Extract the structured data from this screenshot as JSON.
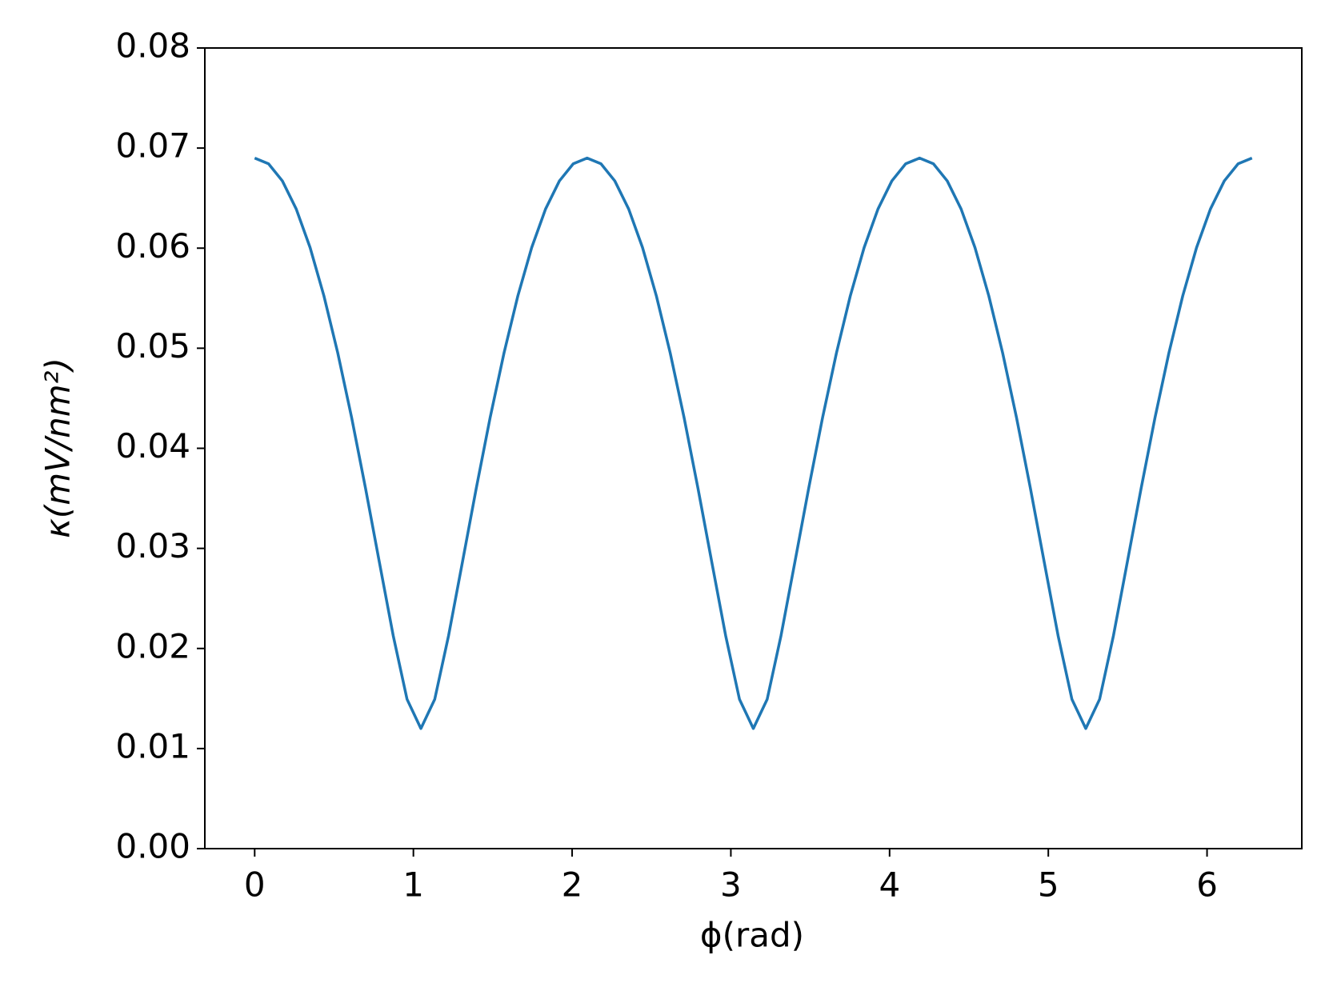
{
  "chart_data": {
    "type": "line",
    "xlabel": "ϕ(rad)",
    "ylabel": "κ(mV/nm²)",
    "x": [
      0,
      0.0873,
      0.1745,
      0.2618,
      0.3491,
      0.4363,
      0.5236,
      0.6109,
      0.6981,
      0.7854,
      0.8727,
      0.9599,
      1.0472,
      1.1345,
      1.2217,
      1.309,
      1.3963,
      1.4835,
      1.5708,
      1.6581,
      1.7453,
      1.8326,
      1.9199,
      2.0071,
      2.0944,
      2.1817,
      2.2689,
      2.3562,
      2.4435,
      2.5307,
      2.618,
      2.7053,
      2.7925,
      2.8798,
      2.9671,
      3.0543,
      3.1416,
      3.2289,
      3.3161,
      3.4034,
      3.4907,
      3.5779,
      3.6652,
      3.7525,
      3.8397,
      3.927,
      4.0143,
      4.1015,
      4.1888,
      4.2761,
      4.3633,
      4.4506,
      4.5379,
      4.6251,
      4.7124,
      4.7997,
      4.8869,
      4.9742,
      5.0615,
      5.1487,
      5.236,
      5.3233,
      5.4105,
      5.4978,
      5.5851,
      5.6723,
      5.7596,
      5.8469,
      5.9341,
      6.0214,
      6.1087,
      6.1959,
      6.2832
    ],
    "values": [
      0.069,
      0.06843,
      0.06672,
      0.06391,
      0.06006,
      0.05523,
      0.04952,
      0.04307,
      0.03603,
      0.02864,
      0.02129,
      0.01493,
      0.012,
      0.01493,
      0.02129,
      0.02864,
      0.03603,
      0.04307,
      0.04952,
      0.05523,
      0.06006,
      0.06391,
      0.06672,
      0.06843,
      0.069,
      0.06843,
      0.06672,
      0.06391,
      0.06006,
      0.05523,
      0.04952,
      0.04307,
      0.03603,
      0.02864,
      0.02129,
      0.01493,
      0.012,
      0.01493,
      0.02129,
      0.02864,
      0.03603,
      0.04307,
      0.04952,
      0.05523,
      0.06006,
      0.06391,
      0.06672,
      0.06843,
      0.069,
      0.06843,
      0.06672,
      0.06391,
      0.06006,
      0.05523,
      0.04952,
      0.04307,
      0.03603,
      0.02864,
      0.02129,
      0.01493,
      0.012,
      0.01493,
      0.02129,
      0.02864,
      0.03603,
      0.04307,
      0.04952,
      0.05523,
      0.06006,
      0.06391,
      0.06672,
      0.06843,
      0.069
    ],
    "color": "#1f77b4",
    "xlim": [
      -0.314,
      6.597
    ],
    "xticks": [
      0,
      1,
      2,
      3,
      4,
      5,
      6
    ],
    "ylim": [
      0,
      0.08
    ],
    "yticks": [
      {
        "value": 0,
        "label": "0.00"
      },
      {
        "value": 0.01,
        "label": "0.01"
      },
      {
        "value": 0.02,
        "label": "0.02"
      },
      {
        "value": 0.03,
        "label": "0.03"
      },
      {
        "value": 0.04,
        "label": "0.04"
      },
      {
        "value": 0.05,
        "label": "0.05"
      },
      {
        "value": 0.06,
        "label": "0.06"
      },
      {
        "value": 0.07,
        "label": "0.07"
      },
      {
        "value": 0.08,
        "label": "0.08"
      }
    ]
  }
}
